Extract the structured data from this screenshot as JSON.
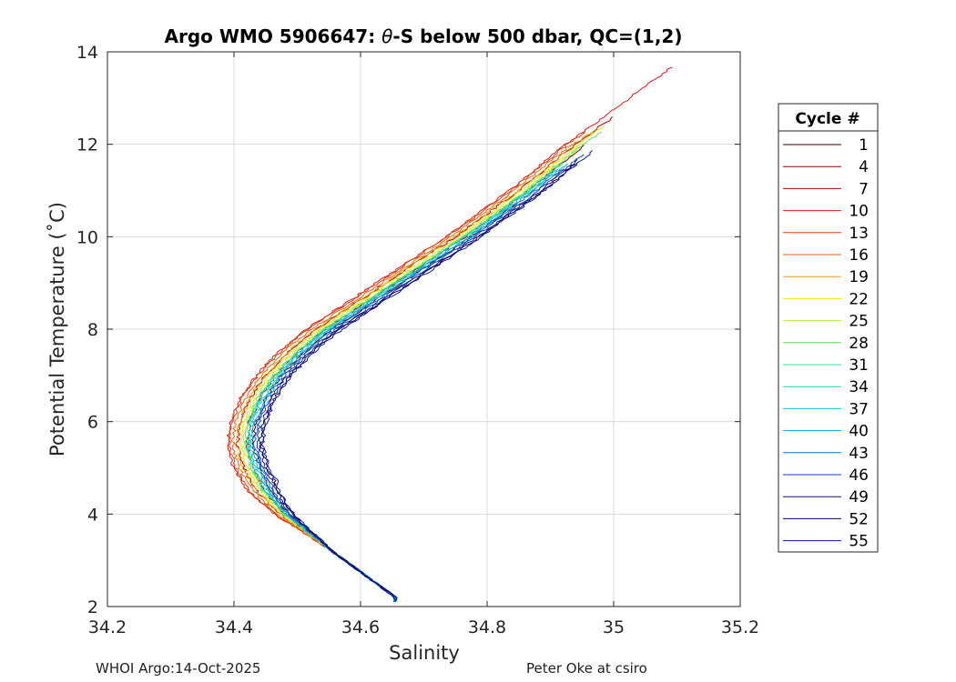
{
  "chart_data": {
    "type": "line",
    "title_prefix": "Argo WMO 5906647: ",
    "title_theta": "θ",
    "title_suffix": "-S below 500 dbar,  QC=(1,2)",
    "xlabel": "Salinity",
    "ylabel": "Potential Temperature (˚C)",
    "xlim": [
      34.2,
      35.2
    ],
    "ylim": [
      2,
      14
    ],
    "xticks": [
      34.2,
      34.4,
      34.6,
      34.8,
      35,
      35.2
    ],
    "yticks": [
      2,
      4,
      6,
      8,
      10,
      12,
      14
    ],
    "xtick_labels": [
      "34.2",
      "34.4",
      "34.6",
      "34.8",
      "35",
      "35.2"
    ],
    "ytick_labels": [
      "2",
      "4",
      "6",
      "8",
      "10",
      "12",
      "14"
    ],
    "grid": true,
    "legend_title": "Cycle #",
    "legend_placement": "right-outside",
    "cycles": [
      1,
      4,
      7,
      10,
      13,
      16,
      19,
      22,
      25,
      28,
      31,
      34,
      37,
      40,
      43,
      46,
      49,
      52,
      55
    ],
    "cycle_labels": [
      "1",
      "4",
      "7",
      "10",
      "13",
      "16",
      "19",
      "22",
      "25",
      "28",
      "31",
      "34",
      "37",
      "40",
      "43",
      "46",
      "49",
      "52",
      "55"
    ],
    "cycle_colors": [
      "#3a0000",
      "#800000",
      "#b00000",
      "#d81818",
      "#e03a10",
      "#e06a10",
      "#e0a010",
      "#f0e000",
      "#b8ee30",
      "#60e060",
      "#30e090",
      "#20d0c0",
      "#10c0e0",
      "#10a0d8",
      "#1070d0",
      "#1040c0",
      "#201070",
      "#100050",
      "#0818a0"
    ],
    "base_curve": {
      "theta": [
        2.2,
        2.5,
        3.0,
        3.5,
        4.0,
        4.5,
        5.0,
        5.5,
        6.0,
        6.5,
        7.0,
        7.5,
        8.0,
        8.5,
        9.0,
        9.5,
        10.0,
        10.5,
        11.0,
        11.5,
        12.0,
        12.4
      ],
      "salinity": [
        34.655,
        34.625,
        34.575,
        34.525,
        34.475,
        34.44,
        34.42,
        34.41,
        34.415,
        34.43,
        34.455,
        34.49,
        34.535,
        34.59,
        34.645,
        34.7,
        34.755,
        34.805,
        34.855,
        34.9,
        34.945,
        34.985
      ]
    },
    "series_offsets": [
      0.02,
      0.01,
      -0.005,
      -0.02,
      -0.018,
      -0.012,
      -0.006,
      0.0,
      0.005,
      0.008,
      0.01,
      0.012,
      0.015,
      0.018,
      0.022,
      0.026,
      0.03,
      0.033,
      0.036
    ],
    "series_top_theta": [
      10.7,
      12.0,
      12.6,
      13.7,
      12.3,
      12.1,
      12.3,
      12.4,
      12.0,
      12.3,
      11.6,
      11.4,
      11.5,
      11.6,
      11.5,
      11.8,
      11.7,
      11.6,
      11.9
    ]
  },
  "footer": {
    "left": "WHOI Argo:14-Oct-2025",
    "right": "Peter Oke at csiro"
  }
}
